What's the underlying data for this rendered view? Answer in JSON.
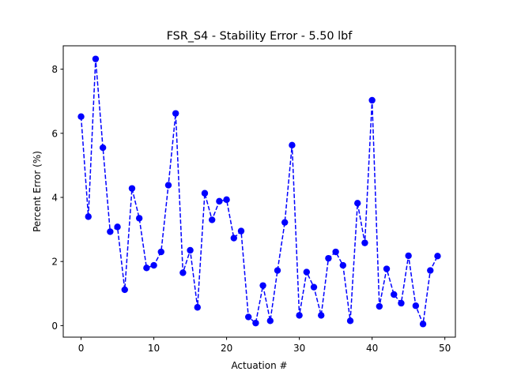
{
  "chart_data": {
    "type": "line",
    "title": "FSR_S4 - Stability Error - 5.50 lbf",
    "xlabel": "Actuation #",
    "ylabel": "Percent Error (%)",
    "xlim": [
      -2.45,
      51.45
    ],
    "ylim": [
      -0.36,
      8.73
    ],
    "xticks": [
      0,
      10,
      20,
      30,
      40,
      50
    ],
    "yticks": [
      0,
      2,
      4,
      6,
      8
    ],
    "grid": false,
    "series": [
      {
        "color": "#0000ff",
        "line_style": "dashed",
        "marker": "circle",
        "x": [
          0,
          1,
          2,
          3,
          4,
          5,
          6,
          7,
          8,
          9,
          10,
          11,
          12,
          13,
          14,
          15,
          16,
          17,
          18,
          19,
          20,
          21,
          22,
          23,
          24,
          25,
          26,
          27,
          28,
          29,
          30,
          31,
          32,
          33,
          34,
          35,
          36,
          37,
          38,
          39,
          40,
          41,
          42,
          43,
          44,
          45,
          46,
          47,
          48,
          49
        ],
        "y": [
          6.52,
          3.4,
          8.32,
          5.55,
          2.93,
          3.08,
          1.12,
          4.28,
          3.35,
          1.8,
          1.88,
          2.3,
          4.38,
          6.62,
          1.65,
          2.35,
          0.57,
          4.13,
          3.3,
          3.88,
          3.93,
          2.73,
          2.95,
          0.27,
          0.08,
          1.25,
          0.15,
          1.72,
          3.22,
          5.63,
          0.32,
          1.67,
          1.2,
          0.32,
          2.1,
          2.3,
          1.88,
          0.15,
          3.82,
          2.58,
          7.03,
          0.6,
          1.77,
          0.97,
          0.7,
          2.18,
          0.62,
          0.05,
          1.72,
          2.17
        ]
      }
    ]
  }
}
